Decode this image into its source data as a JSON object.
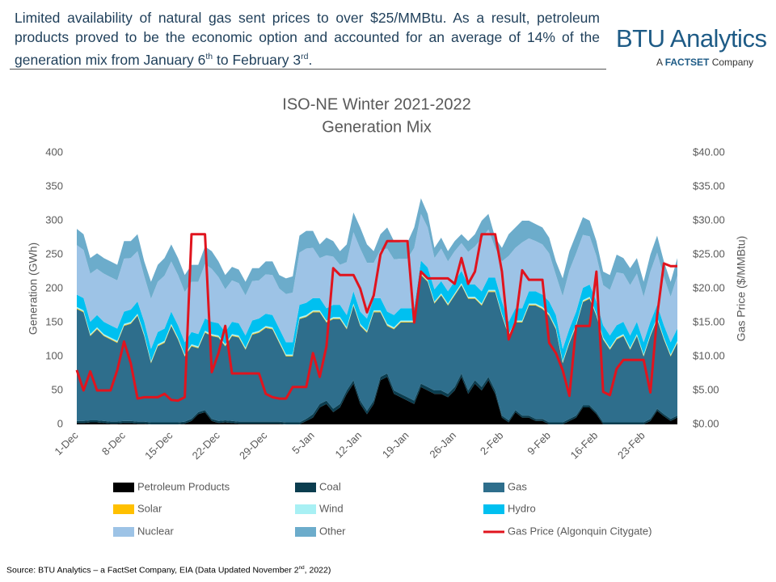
{
  "header": {
    "text": [
      "Limited availability of natural gas sent prices to over $25/MMBtu. As a result, petroleum products proved to be the economic option and accounted for an average of 14% of the generation mix from January 6",
      "th",
      " to February 3",
      "rd",
      "."
    ]
  },
  "logo": {
    "name": "BTU Analytics",
    "tagline": [
      "A ",
      "FACTSET",
      " Company"
    ]
  },
  "source": [
    "Source: BTU Analytics – a FactSet Company, EIA (Data Updated November 2",
    "nd",
    ", 2022)"
  ],
  "chart_data": {
    "type": "stacked-area",
    "title": [
      "ISO-NE Winter 2021-2022",
      "Generation Mix"
    ],
    "y_label": "Generation (GWh)",
    "y2_label": "Gas Price ($/MMBtu)",
    "categories": [
      "1-Dec",
      null,
      null,
      null,
      null,
      null,
      null,
      "8-Dec",
      null,
      null,
      null,
      null,
      null,
      null,
      "15-Dec",
      null,
      null,
      null,
      null,
      null,
      null,
      "22-Dec",
      null,
      null,
      null,
      null,
      null,
      null,
      "29-Dec",
      null,
      null,
      null,
      null,
      null,
      null,
      "5-Jan",
      null,
      null,
      null,
      null,
      null,
      null,
      "12-Jan",
      null,
      null,
      null,
      null,
      null,
      null,
      "19-Jan",
      null,
      null,
      null,
      null,
      null,
      null,
      "26-Jan",
      null,
      null,
      null,
      null,
      null,
      null,
      "2-Feb",
      null,
      null,
      null,
      null,
      null,
      null,
      "9-Feb",
      null,
      null,
      null,
      null,
      null,
      null,
      "16-Feb",
      null,
      null,
      null,
      null,
      null,
      null,
      "23-Feb",
      null,
      null,
      null,
      null,
      null
    ],
    "ylim": [
      0,
      400
    ],
    "yticks": [
      0,
      50,
      100,
      150,
      200,
      250,
      300,
      350,
      400
    ],
    "y2lim": [
      0,
      40
    ],
    "y2ticks": [
      {
        "value": 0,
        "label": "$0.00"
      },
      {
        "value": 5,
        "label": "$5.00"
      },
      {
        "value": 10,
        "label": "$10.00"
      },
      {
        "value": 15,
        "label": "$15.00"
      },
      {
        "value": 20,
        "label": "$20.00"
      },
      {
        "value": 25,
        "label": "$25.00"
      },
      {
        "value": 30,
        "label": "$30.00"
      },
      {
        "value": 35,
        "label": "$35.00"
      },
      {
        "value": 40,
        "label": "$40.00"
      }
    ],
    "series": [
      {
        "name": "Petroleum Products",
        "color": "#000000",
        "values": [
          2,
          2,
          3,
          3,
          2,
          1,
          1,
          2,
          2,
          1,
          1,
          0,
          0,
          0,
          0,
          0,
          1,
          5,
          15,
          18,
          5,
          2,
          3,
          2,
          1,
          1,
          1,
          1,
          1,
          1,
          1,
          0,
          0,
          0,
          5,
          10,
          25,
          30,
          18,
          25,
          45,
          60,
          30,
          15,
          30,
          65,
          70,
          45,
          40,
          35,
          30,
          55,
          50,
          45,
          45,
          40,
          50,
          70,
          45,
          60,
          50,
          65,
          45,
          10,
          3,
          18,
          10,
          10,
          5,
          5,
          0,
          0,
          0,
          5,
          10,
          25,
          25,
          15,
          0,
          0,
          0,
          0,
          0,
          0,
          0,
          5,
          20,
          12,
          5,
          10
        ]
      },
      {
        "name": "Coal",
        "color": "#0b3d4f",
        "values": [
          3,
          3,
          3,
          3,
          3,
          3,
          3,
          3,
          3,
          3,
          3,
          3,
          3,
          3,
          3,
          3,
          3,
          3,
          3,
          3,
          3,
          3,
          3,
          3,
          3,
          3,
          3,
          3,
          3,
          3,
          3,
          3,
          3,
          3,
          3,
          5,
          5,
          5,
          5,
          5,
          5,
          5,
          5,
          5,
          5,
          5,
          5,
          5,
          5,
          5,
          5,
          5,
          5,
          5,
          5,
          5,
          5,
          5,
          5,
          5,
          5,
          5,
          5,
          3,
          3,
          3,
          3,
          3,
          3,
          3,
          3,
          3,
          3,
          3,
          3,
          3,
          3,
          3,
          3,
          3,
          3,
          3,
          3,
          3,
          3,
          3,
          3,
          3,
          3,
          3
        ]
      },
      {
        "name": "Gas",
        "color": "#2e6e8c",
        "values": [
          165,
          160,
          124,
          134,
          125,
          121,
          116,
          140,
          143,
          156,
          126,
          87,
          112,
          117,
          142,
          122,
          96,
          107,
          94,
          114,
          122,
          123,
          109,
          125,
          124,
          106,
          128,
          131,
          138,
          136,
          116,
          97,
          97,
          152,
          150,
          150,
          135,
          115,
          132,
          125,
          90,
          110,
          110,
          115,
          130,
          95,
          70,
          90,
          105,
          110,
          115,
          160,
          155,
          128,
          140,
          130,
          135,
          130,
          135,
          120,
          120,
          125,
          145,
          147,
          124,
          129,
          137,
          162,
          167,
          162,
          157,
          137,
          87,
          112,
          132,
          152,
          157,
          142,
          122,
          107,
          122,
          127,
          107,
          127,
          97,
          122,
          132,
          110,
          92,
          107
        ]
      },
      {
        "name": "Solar",
        "color": "#ffc000",
        "values": [
          1,
          1,
          1,
          1,
          1,
          1,
          1,
          1,
          1,
          1,
          1,
          1,
          1,
          1,
          1,
          1,
          1,
          1,
          1,
          1,
          1,
          1,
          1,
          1,
          1,
          1,
          1,
          1,
          1,
          1,
          1,
          1,
          1,
          1,
          1,
          1,
          1,
          1,
          1,
          1,
          1,
          1,
          1,
          1,
          1,
          1,
          1,
          1,
          1,
          1,
          1,
          1,
          1,
          1,
          1,
          1,
          1,
          1,
          1,
          1,
          1,
          1,
          1,
          1,
          1,
          1,
          1,
          1,
          1,
          1,
          1,
          1,
          1,
          1,
          1,
          1,
          1,
          1,
          1,
          1,
          1,
          1,
          1,
          1,
          1,
          1,
          1,
          1,
          1,
          1
        ]
      },
      {
        "name": "Wind",
        "color": "#a8f0f4",
        "values": [
          2,
          2,
          2,
          2,
          2,
          2,
          2,
          2,
          2,
          2,
          2,
          2,
          2,
          2,
          2,
          2,
          2,
          2,
          2,
          2,
          2,
          2,
          2,
          2,
          2,
          2,
          2,
          2,
          2,
          2,
          2,
          2,
          2,
          2,
          2,
          2,
          2,
          2,
          2,
          2,
          2,
          2,
          2,
          2,
          2,
          2,
          2,
          2,
          2,
          2,
          2,
          2,
          2,
          2,
          2,
          2,
          2,
          2,
          2,
          2,
          2,
          2,
          2,
          2,
          2,
          2,
          2,
          2,
          2,
          2,
          2,
          2,
          2,
          2,
          2,
          2,
          2,
          2,
          2,
          2,
          2,
          2,
          2,
          2,
          2,
          2,
          2,
          2,
          2,
          2
        ]
      },
      {
        "name": "Hydro",
        "color": "#00c0f0",
        "values": [
          18,
          18,
          18,
          18,
          18,
          18,
          18,
          18,
          18,
          18,
          18,
          18,
          18,
          18,
          18,
          18,
          18,
          18,
          18,
          18,
          18,
          18,
          18,
          18,
          18,
          18,
          18,
          18,
          18,
          18,
          18,
          18,
          18,
          18,
          18,
          18,
          18,
          18,
          18,
          18,
          18,
          18,
          18,
          18,
          18,
          18,
          18,
          18,
          18,
          18,
          18,
          18,
          18,
          18,
          18,
          18,
          18,
          18,
          18,
          18,
          18,
          18,
          18,
          18,
          18,
          18,
          18,
          18,
          18,
          18,
          18,
          18,
          18,
          18,
          18,
          18,
          18,
          18,
          18,
          18,
          18,
          18,
          18,
          18,
          18,
          18,
          18,
          18,
          18,
          18
        ]
      },
      {
        "name": "Nuclear",
        "color": "#9dc3e6",
        "values": [
          73,
          71,
          71,
          68,
          71,
          71,
          71,
          78,
          76,
          74,
          67,
          74,
          74,
          78,
          74,
          74,
          74,
          74,
          77,
          80,
          78,
          68,
          63,
          61,
          59,
          59,
          58,
          56,
          58,
          59,
          59,
          71,
          73,
          77,
          80,
          74,
          59,
          78,
          71,
          59,
          78,
          87,
          93,
          82,
          52,
          71,
          93,
          82,
          73,
          73,
          89,
          69,
          59,
          46,
          48,
          44,
          44,
          41,
          48,
          56,
          78,
          71,
          44,
          59,
          97,
          89,
          97,
          78,
          74,
          74,
          71,
          59,
          78,
          86,
          86,
          78,
          71,
          67,
          59,
          67,
          78,
          71,
          74,
          71,
          67,
          74,
          77,
          71,
          67,
          78
        ]
      },
      {
        "name": "Other",
        "color": "#6caccb",
        "values": [
          24,
          23,
          23,
          23,
          23,
          23,
          23,
          26,
          25,
          25,
          22,
          25,
          25,
          26,
          25,
          25,
          25,
          25,
          25,
          26,
          26,
          23,
          21,
          20,
          20,
          20,
          19,
          18,
          19,
          20,
          20,
          23,
          24,
          25,
          26,
          25,
          20,
          26,
          23,
          20,
          26,
          29,
          31,
          27,
          17,
          23,
          31,
          27,
          24,
          24,
          30,
          23,
          20,
          15,
          16,
          15,
          15,
          13,
          16,
          18,
          26,
          23,
          15,
          20,
          32,
          30,
          32,
          26,
          25,
          25,
          23,
          20,
          26,
          28,
          28,
          26,
          23,
          22,
          20,
          22,
          26,
          23,
          25,
          23,
          22,
          25,
          25,
          23,
          22,
          26
        ]
      },
      {
        "name": "Gas Price (Algonquin Citygate)",
        "color": "#e0141e",
        "axis": "y2",
        "type": "line",
        "values": [
          8,
          5,
          7.8,
          5,
          5,
          5,
          8,
          12.2,
          9,
          3.8,
          4,
          4,
          4,
          4.5,
          3.6,
          3.5,
          4,
          28,
          28,
          28,
          7.7,
          10.5,
          14.5,
          7.5,
          7.5,
          7.5,
          7.5,
          7.5,
          4.5,
          4,
          3.8,
          3.8,
          5.5,
          5.5,
          5.5,
          10.5,
          7,
          11.5,
          23,
          22,
          22,
          22,
          20,
          16.5,
          19,
          25,
          27,
          27,
          27,
          27,
          15,
          22.5,
          21.5,
          21.5,
          21.5,
          21.5,
          20.7,
          24.5,
          20.7,
          22.5,
          28,
          28,
          28,
          22.5,
          12.5,
          15,
          22.7,
          21.3,
          21.3,
          21.3,
          12,
          10.5,
          8,
          4.2,
          14.5,
          14.5,
          14.5,
          22.5,
          4.8,
          4.3,
          8.2,
          9.5,
          9.5,
          9.5,
          9.5,
          4.7,
          16,
          23.7,
          23.3,
          23.3
        ]
      }
    ]
  }
}
